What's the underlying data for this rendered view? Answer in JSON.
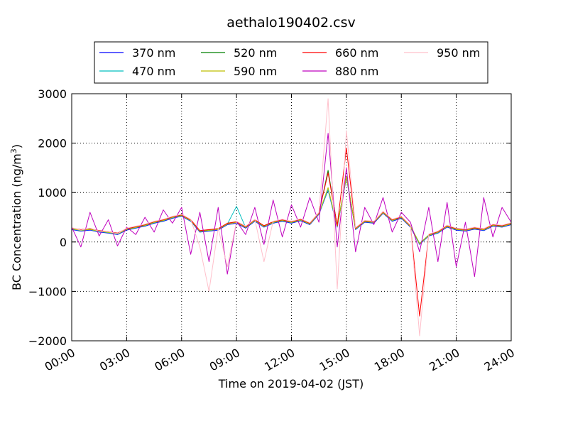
{
  "chart_data": {
    "type": "line",
    "title": "aethalo190402.csv",
    "xlabel": "Time on 2019-04-02 (JST)",
    "ylabel": "BC Concentration (ng/m",
    "ylabel_sup": "3",
    "ylabel_close": ")",
    "xlim": [
      "00:00",
      "24:00"
    ],
    "ylim": [
      -2000,
      3000
    ],
    "xticks": [
      "00:00",
      "03:00",
      "06:00",
      "09:00",
      "12:00",
      "15:00",
      "18:00",
      "21:00",
      "24:00"
    ],
    "yticks": [
      "3000",
      "2000",
      "1000",
      "0",
      "−1000",
      "−2000"
    ],
    "grid": true,
    "legend_position": "top",
    "x": [
      "00:00",
      "00:30",
      "01:00",
      "01:30",
      "02:00",
      "02:30",
      "03:00",
      "03:30",
      "04:00",
      "04:30",
      "05:00",
      "05:30",
      "06:00",
      "06:30",
      "07:00",
      "07:30",
      "08:00",
      "08:30",
      "09:00",
      "09:30",
      "10:00",
      "10:30",
      "11:00",
      "11:30",
      "12:00",
      "12:30",
      "13:00",
      "13:30",
      "14:00",
      "14:30",
      "15:00",
      "15:30",
      "16:00",
      "16:30",
      "17:00",
      "17:30",
      "18:00",
      "18:30",
      "19:00",
      "19:30",
      "20:00",
      "20:30",
      "21:00",
      "21:30",
      "22:00",
      "22:30",
      "23:00",
      "23:30",
      "24:00"
    ],
    "series": [
      {
        "name": "370 nm",
        "color": "#0000ff",
        "values": [
          250,
          220,
          240,
          200,
          180,
          150,
          240,
          280,
          320,
          380,
          420,
          480,
          520,
          420,
          200,
          220,
          240,
          350,
          380,
          280,
          420,
          300,
          380,
          420,
          380,
          430,
          350,
          560,
          1050,
          300,
          1300,
          250,
          400,
          380,
          580,
          420,
          480,
          300,
          -50,
          120,
          180,
          300,
          240,
          220,
          260,
          230,
          320,
          300,
          350
        ]
      },
      {
        "name": "470 nm",
        "color": "#00bfbf",
        "values": [
          260,
          230,
          250,
          210,
          190,
          160,
          250,
          290,
          330,
          390,
          430,
          490,
          530,
          430,
          210,
          230,
          250,
          360,
          720,
          290,
          430,
          310,
          390,
          430,
          390,
          440,
          360,
          570,
          1060,
          310,
          1310,
          260,
          410,
          390,
          590,
          430,
          490,
          310,
          -40,
          130,
          190,
          310,
          250,
          230,
          270,
          240,
          330,
          310,
          360
        ]
      },
      {
        "name": "520 nm",
        "color": "#008000",
        "values": [
          270,
          240,
          260,
          220,
          200,
          170,
          260,
          300,
          340,
          400,
          440,
          500,
          540,
          440,
          220,
          240,
          260,
          370,
          400,
          300,
          440,
          320,
          400,
          440,
          400,
          450,
          370,
          580,
          1450,
          320,
          1330,
          270,
          420,
          400,
          600,
          440,
          500,
          320,
          -30,
          140,
          200,
          320,
          260,
          240,
          280,
          250,
          340,
          320,
          370
        ]
      },
      {
        "name": "590 nm",
        "color": "#bfbf00",
        "values": [
          265,
          235,
          255,
          215,
          195,
          165,
          255,
          295,
          335,
          395,
          435,
          495,
          535,
          435,
          215,
          235,
          255,
          365,
          395,
          295,
          435,
          315,
          395,
          435,
          395,
          445,
          365,
          575,
          1100,
          315,
          1320,
          265,
          415,
          395,
          595,
          435,
          495,
          315,
          -35,
          135,
          195,
          315,
          255,
          235,
          275,
          245,
          335,
          315,
          365
        ]
      },
      {
        "name": "660 nm",
        "color": "#ff0000",
        "values": [
          280,
          250,
          270,
          230,
          210,
          180,
          270,
          310,
          350,
          410,
          450,
          510,
          550,
          450,
          230,
          250,
          270,
          380,
          410,
          310,
          450,
          330,
          410,
          450,
          410,
          460,
          380,
          590,
          1400,
          330,
          1900,
          280,
          430,
          410,
          610,
          450,
          510,
          330,
          -1500,
          150,
          210,
          330,
          270,
          250,
          290,
          260,
          350,
          330,
          380
        ]
      },
      {
        "name": "880 nm",
        "color": "#bf00bf",
        "values": [
          300,
          -100,
          600,
          120,
          450,
          -80,
          300,
          150,
          500,
          200,
          650,
          380,
          700,
          -250,
          600,
          -400,
          700,
          -650,
          420,
          150,
          700,
          -50,
          850,
          100,
          750,
          300,
          900,
          400,
          2200,
          -100,
          1500,
          -200,
          700,
          350,
          900,
          200,
          600,
          400,
          -200,
          700,
          -400,
          800,
          -500,
          400,
          -700,
          900,
          100,
          700,
          400
        ]
      },
      {
        "name": "950 nm",
        "color": "#ffc0cb",
        "values": [
          290,
          240,
          280,
          220,
          210,
          170,
          280,
          320,
          360,
          420,
          460,
          520,
          560,
          460,
          -100,
          -1000,
          280,
          -500,
          420,
          320,
          460,
          -400,
          420,
          460,
          420,
          470,
          390,
          600,
          2900,
          -950,
          2250,
          290,
          440,
          420,
          620,
          460,
          520,
          340,
          -1900,
          160,
          220,
          340,
          280,
          260,
          300,
          270,
          360,
          340,
          390
        ]
      }
    ]
  }
}
